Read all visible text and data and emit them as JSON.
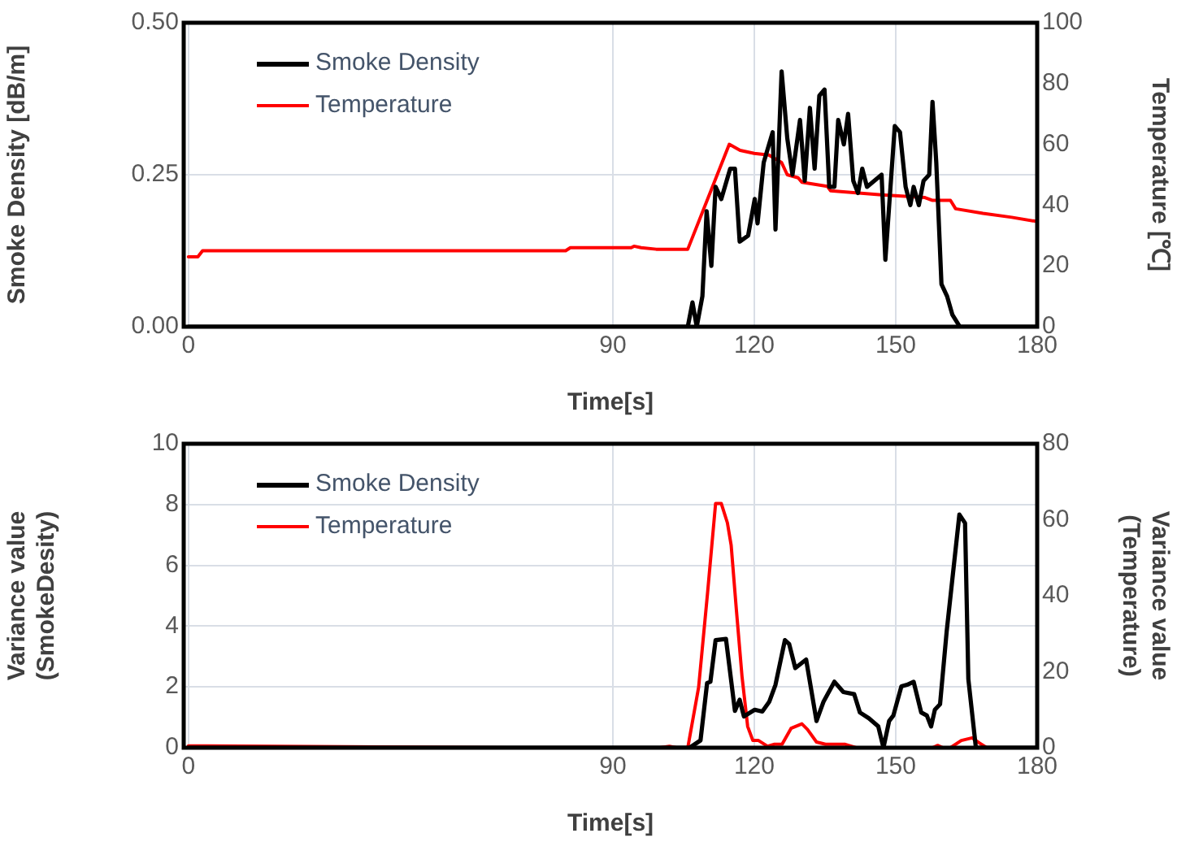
{
  "chart_data": [
    {
      "type": "line",
      "xlabel": "Time[s]",
      "ylabel": "Smoke Density [dB/m]",
      "y2label": "Temperature [℃]",
      "xlim": [
        -1,
        180
      ],
      "xticks": [
        0,
        90,
        120,
        150,
        180
      ],
      "ylim": [
        0,
        0.5
      ],
      "yticks": [
        {
          "value": 0,
          "label": "0.00"
        },
        0.25,
        {
          "value": 0.5,
          "label": "0.50"
        }
      ],
      "y2lim": [
        0,
        100
      ],
      "y2ticks": [
        0,
        20,
        40,
        60,
        80,
        100
      ],
      "grid": true,
      "legend": "top left",
      "series": [
        {
          "name": "Smoke Density",
          "color": "#000000",
          "x": [
            0,
            4,
            68,
            105.9,
            106.9,
            107.8,
            109,
            109.9,
            110.9,
            111.8,
            113,
            114.9,
            115.9,
            116.9,
            118.7,
            120.1,
            120.7,
            122,
            123.9,
            124.5,
            125.8,
            127,
            128.1,
            129.7,
            130.7,
            131.8,
            132.8,
            133.8,
            134.9,
            135.9,
            137,
            137.8,
            139,
            139.9,
            141,
            142,
            142.9,
            143.9,
            147,
            147.8,
            149.8,
            150.9,
            152.1,
            153.1,
            153.8,
            154.9,
            155.9,
            157.1,
            157.8,
            158.6,
            159.7,
            160.9,
            162,
            163.6,
            171.6,
            180
          ],
          "values": [
            0,
            0,
            0,
            0,
            0.04,
            0,
            0.05,
            0.19,
            0.1,
            0.23,
            0.21,
            0.26,
            0.26,
            0.14,
            0.15,
            0.21,
            0.17,
            0.27,
            0.32,
            0.16,
            0.42,
            0.31,
            0.25,
            0.34,
            0.24,
            0.36,
            0.26,
            0.38,
            0.39,
            0.23,
            0.23,
            0.34,
            0.3,
            0.35,
            0.24,
            0.22,
            0.26,
            0.23,
            0.25,
            0.11,
            0.33,
            0.32,
            0.23,
            0.2,
            0.23,
            0.2,
            0.24,
            0.25,
            0.37,
            0.27,
            0.07,
            0.05,
            0.02,
            0,
            0,
            0
          ]
        },
        {
          "name": "Temperature",
          "color": "#ff0000",
          "axis": "y2",
          "x": [
            0,
            2,
            3,
            68,
            80,
            81,
            93.9,
            94.5,
            96,
            99.2,
            105.9,
            114.7,
            117,
            120,
            123.1,
            125.8,
            127,
            129.3,
            130.1,
            135.5,
            136.2,
            147,
            156.2,
            157.7,
            161.6,
            162.7,
            168.5,
            174.6,
            180
          ],
          "values": [
            23,
            23,
            25,
            25,
            25,
            26,
            26,
            26.5,
            26,
            25.5,
            25.5,
            60,
            58,
            57,
            56.5,
            54,
            50,
            49,
            47.5,
            46.2,
            44.7,
            43.4,
            42.5,
            41.6,
            41.6,
            38.8,
            37.3,
            36,
            34.6
          ]
        }
      ]
    },
    {
      "type": "line",
      "xlabel": "Time[s]",
      "ylabel": "Variance value\n(SmokeDesity)",
      "y2label": "Variance value\n(Temperature)",
      "xlim": [
        -1,
        180
      ],
      "xticks": [
        0,
        90,
        120,
        150,
        180
      ],
      "ylim": [
        0,
        10
      ],
      "yticks": [
        0,
        2,
        4,
        6,
        8,
        10
      ],
      "y2lim": [
        0,
        80
      ],
      "y2ticks": [
        0,
        20,
        40,
        60,
        80
      ],
      "grid": true,
      "legend": "top left",
      "series": [
        {
          "name": "Smoke Density",
          "color": "#000000",
          "x": [
            0,
            4,
            68,
            106.3,
            108.6,
            110,
            110.7,
            111.8,
            114,
            115.9,
            116.9,
            117.8,
            120.1,
            121.7,
            123.2,
            124.5,
            126.5,
            127.4,
            128.7,
            131,
            133.2,
            134.7,
            137,
            138.9,
            141.2,
            142.4,
            144.3,
            146.3,
            147.4,
            148.6,
            149.5,
            151.2,
            152.4,
            153.8,
            155.4,
            156.6,
            157.5,
            158.3,
            159.4,
            160.8,
            163.5,
            164.7,
            165.4,
            167,
            180
          ],
          "values": [
            0,
            0,
            0,
            0,
            0.24,
            2.13,
            2.17,
            3.54,
            3.58,
            1.21,
            1.58,
            1.03,
            1.25,
            1.19,
            1.52,
            2.07,
            3.54,
            3.41,
            2.62,
            2.9,
            0.88,
            1.52,
            2.17,
            1.83,
            1.76,
            1.16,
            0.97,
            0.7,
            0,
            0.88,
            1.06,
            2.02,
            2.07,
            2.17,
            1.16,
            1.06,
            0.7,
            1.25,
            1.43,
            3.82,
            7.67,
            7.39,
            2.26,
            0,
            0
          ]
        },
        {
          "name": "Temperature",
          "color": "#ff0000",
          "axis": "y2",
          "x": [
            0,
            3,
            68,
            100,
            102,
            103.5,
            105.9,
            108.2,
            110.1,
            111.8,
            113,
            114.3,
            115.1,
            116.2,
            117.4,
            118.6,
            119.7,
            120.9,
            122.8,
            124.3,
            125.9,
            127.8,
            130.1,
            131.3,
            133.2,
            135.1,
            139.3,
            141.6,
            157.8,
            158.9,
            160,
            161.6,
            163.9,
            166.2,
            167.8,
            169.3,
            180
          ],
          "values": [
            0.5,
            0.5,
            0,
            0,
            0.4,
            0,
            0,
            15.9,
            40.8,
            64.3,
            64.3,
            59.2,
            53.3,
            36.4,
            18.8,
            5.6,
            1.9,
            1.9,
            0.4,
            0.9,
            0.9,
            5.1,
            6.3,
            4.8,
            1.5,
            0.9,
            0.9,
            0,
            0,
            0.6,
            0,
            0,
            1.9,
            2.6,
            1.2,
            0,
            0
          ]
        }
      ]
    }
  ]
}
